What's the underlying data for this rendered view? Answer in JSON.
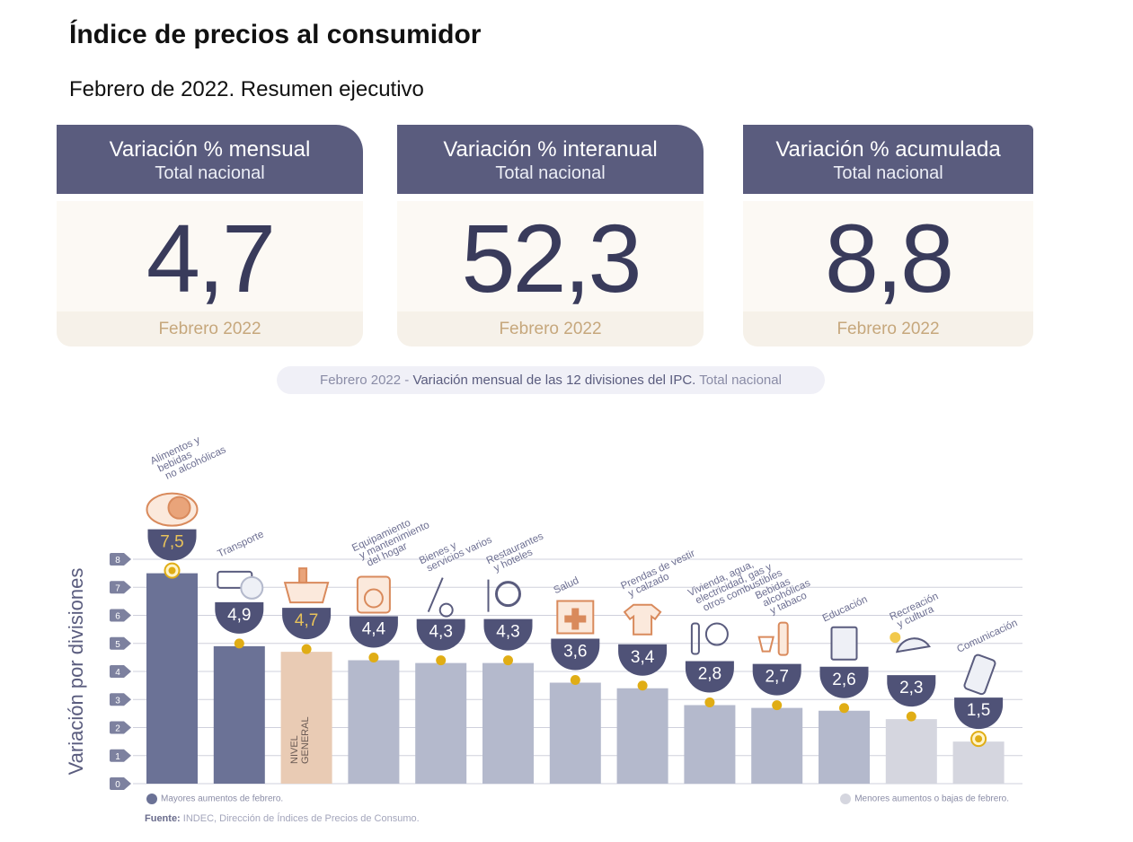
{
  "header": {
    "title": "Índice de precios al consumidor",
    "subtitle": "Febrero de 2022. Resumen ejecutivo"
  },
  "cards": [
    {
      "title": "Variación % mensual",
      "subtitle": "Total nacional",
      "value": "4,7",
      "period": "Febrero 2022"
    },
    {
      "title": "Variación % interanual",
      "subtitle": "Total nacional",
      "value": "52,3",
      "period": "Febrero 2022"
    },
    {
      "title": "Variación % acumulada",
      "subtitle": "Total nacional",
      "value": "8,8",
      "period": "Febrero 2022"
    }
  ],
  "chart_title": {
    "part1": "Febrero 2022 - ",
    "part2": "Variación mensual de las 12 divisiones del IPC.",
    "part3": " Total nacional"
  },
  "chart_data": {
    "type": "bar",
    "ylabel": "Variación por divisiones",
    "yunit": "%",
    "ylim": [
      0,
      8
    ],
    "yticks": [
      0,
      1,
      2,
      3,
      4,
      5,
      6,
      7,
      8
    ],
    "grid": true,
    "categories": [
      "Alimentos y bebidas no alcohólicas",
      "Transporte",
      "NIVEL GENERAL",
      "Equipamiento y mantenimiento del hogar",
      "Bienes y servicios varios",
      "Restaurantes y hoteles",
      "Salud",
      "Prendas de vestir y calzado",
      "Vivienda, agua, electricidad, gas y otros combustibles",
      "Bebidas alcohólicas y tabaco",
      "Educación",
      "Recreación y cultura",
      "Comunicación"
    ],
    "label_lines": [
      [
        "Alimentos y",
        "bebidas",
        "no alcohólicas"
      ],
      [
        "Transporte"
      ],
      [],
      [
        "Equipamiento",
        "y mantenimiento",
        "del hogar"
      ],
      [
        "Bienes y",
        "servicios varios"
      ],
      [
        "Restaurantes",
        "y hoteles"
      ],
      [
        "Salud"
      ],
      [
        "Prendas de vestir",
        "y calzado"
      ],
      [
        "Vivienda, agua,",
        "electricidad, gas y",
        "otros combustibles"
      ],
      [
        "Bebidas",
        "alcohólicas",
        "y tabaco"
      ],
      [
        "Educación"
      ],
      [
        "Recreación",
        "y cultura"
      ],
      [
        "Comunicación"
      ]
    ],
    "bar_text": [
      "",
      "",
      "NIVEL GENERAL",
      "",
      "",
      "",
      "",
      "",
      "",
      "",
      "",
      "",
      ""
    ],
    "values": [
      7.5,
      4.9,
      4.7,
      4.4,
      4.3,
      4.3,
      3.6,
      3.4,
      2.8,
      2.7,
      2.6,
      2.3,
      1.5
    ],
    "value_labels": [
      "7,5",
      "4,9",
      "4,7",
      "4,4",
      "4,3",
      "4,3",
      "3,6",
      "3,4",
      "2,8",
      "2,7",
      "2,6",
      "2,3",
      "1,5"
    ],
    "groups": [
      "high",
      "high",
      "general",
      "mid",
      "mid",
      "mid",
      "mid",
      "mid",
      "mid",
      "mid",
      "mid",
      "low",
      "low"
    ],
    "icons": [
      "food-icon",
      "transport-icon",
      "basket-icon",
      "appliance-icon",
      "comb-icon",
      "dining-icon",
      "health-icon",
      "clothing-icon",
      "utilities-icon",
      "bottle-icon",
      "book-icon",
      "umbrella-icon",
      "phone-icon"
    ],
    "highlight_markers": [
      0,
      12
    ],
    "colors": {
      "high": "#6b7296",
      "general": "#e9cbb4",
      "mid": "#b4b9cc",
      "low": "#d5d6df",
      "badge": "#4f5277",
      "badge_highlight": "#e8c25a",
      "marker": "#e0ad15",
      "grid": "#cfd0dc",
      "icon": "#d98a5c"
    }
  },
  "legend": {
    "high": "Mayores aumentos de febrero.",
    "low": "Menores aumentos o bajas de febrero."
  },
  "source": {
    "label": "Fuente:",
    "text": " INDEC, Dirección de Índices de Precios de Consumo."
  }
}
